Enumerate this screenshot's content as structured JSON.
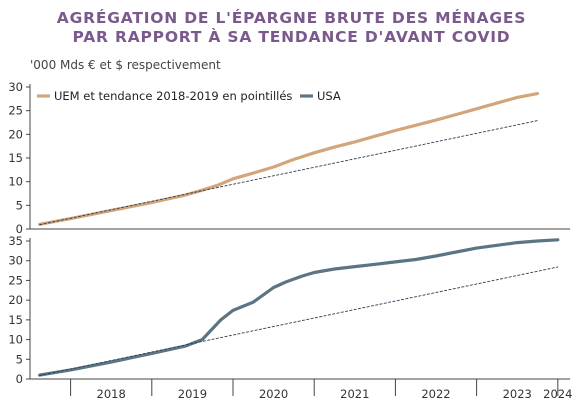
{
  "title_line1": "AGRÉGATION DE L'ÉPARGNE BRUTE DES MÉNAGES",
  "title_line2": "PAR RAPPORT À SA TENDANCE D'AVANT COVID",
  "subtitle": "'000 Mds € et $ respectivement",
  "colors": {
    "title": "#7a5a8c",
    "uem": "#d2a57a",
    "usa": "#5c7585",
    "trend": "#2c3e50",
    "axis": "#444444"
  },
  "chart_data": [
    {
      "type": "line",
      "title": "",
      "xlabel": "",
      "ylabel": "",
      "ylim": [
        0,
        30
      ],
      "yticks": [
        0,
        5,
        10,
        15,
        20,
        25,
        30
      ],
      "legend": "top-left",
      "series": [
        {
          "name": "UEM et tendance 2018-2019 en pointillés",
          "style": "solid",
          "x": [
            2017.62,
            2018.0,
            2018.5,
            2019.0,
            2019.42,
            2019.62,
            2019.82,
            2020.0,
            2020.25,
            2020.5,
            2020.75,
            2021.0,
            2021.25,
            2021.5,
            2021.75,
            2022.0,
            2022.25,
            2022.5,
            2022.75,
            2023.0,
            2023.25,
            2023.5,
            2023.75
          ],
          "y": [
            1.0,
            2.2,
            3.9,
            5.6,
            7.2,
            8.2,
            9.3,
            10.6,
            11.8,
            13.1,
            14.7,
            16.1,
            17.3,
            18.4,
            19.6,
            20.8,
            21.9,
            23.0,
            24.2,
            25.4,
            26.6,
            27.8,
            28.6
          ]
        },
        {
          "name": "",
          "style": "dotted",
          "x": [
            2017.62,
            2023.75
          ],
          "y": [
            0.9,
            22.9
          ]
        }
      ]
    },
    {
      "type": "line",
      "title": "",
      "xlabel": "",
      "ylabel": "",
      "ylim": [
        0,
        35
      ],
      "yticks": [
        0,
        5,
        10,
        15,
        20,
        25,
        30,
        35
      ],
      "xticks": [
        "2018",
        "2019",
        "2020",
        "2021",
        "2022",
        "2023",
        "2024"
      ],
      "legend": "top-right",
      "series": [
        {
          "name": "USA",
          "style": "solid",
          "x": [
            2017.62,
            2018.0,
            2018.5,
            2019.0,
            2019.42,
            2019.62,
            2019.85,
            2020.0,
            2020.25,
            2020.5,
            2020.65,
            2020.85,
            2021.0,
            2021.25,
            2021.5,
            2021.75,
            2022.0,
            2022.25,
            2022.5,
            2022.75,
            2023.0,
            2023.25,
            2023.5,
            2023.75,
            2024.0
          ],
          "y": [
            1.0,
            2.3,
            4.3,
            6.5,
            8.4,
            10.0,
            15.0,
            17.4,
            19.5,
            23.2,
            24.6,
            26.1,
            27.0,
            27.9,
            28.5,
            29.1,
            29.7,
            30.3,
            31.2,
            32.2,
            33.2,
            33.9,
            34.6,
            35.0,
            35.3
          ]
        },
        {
          "name": "",
          "style": "dotted",
          "x": [
            2017.62,
            2024.0
          ],
          "y": [
            0.9,
            28.4
          ]
        }
      ]
    }
  ]
}
